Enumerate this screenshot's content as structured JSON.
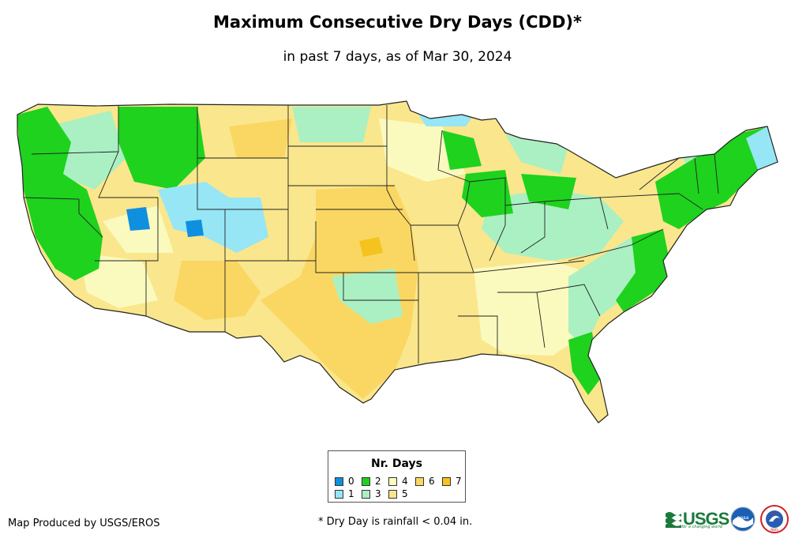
{
  "title": "Maximum Consecutive Dry Days (CDD)*",
  "subtitle": "in past 7 days, as of Mar 30, 2024",
  "legend": {
    "title": "Nr. Days",
    "items": [
      {
        "label": "0",
        "color": "#0f8fe0"
      },
      {
        "label": "1",
        "color": "#96e6f5"
      },
      {
        "label": "2",
        "color": "#1ed21e"
      },
      {
        "label": "3",
        "color": "#aaf0c3"
      },
      {
        "label": "4",
        "color": "#fafabe"
      },
      {
        "label": "5",
        "color": "#fae68c"
      },
      {
        "label": "6",
        "color": "#fad763"
      },
      {
        "label": "7",
        "color": "#f5c31e"
      }
    ]
  },
  "credit": "Map Produced by USGS/EROS",
  "footnote": "* Dry Day is rainfall < 0.04 in.",
  "logos": {
    "usgs": "USGS",
    "usgs_tagline": "science for a changing world",
    "noaa": "noaa",
    "nws": "NWS"
  },
  "icons": [
    "usgs-logo-icon",
    "noaa-logo-icon",
    "nws-logo-icon"
  ]
}
